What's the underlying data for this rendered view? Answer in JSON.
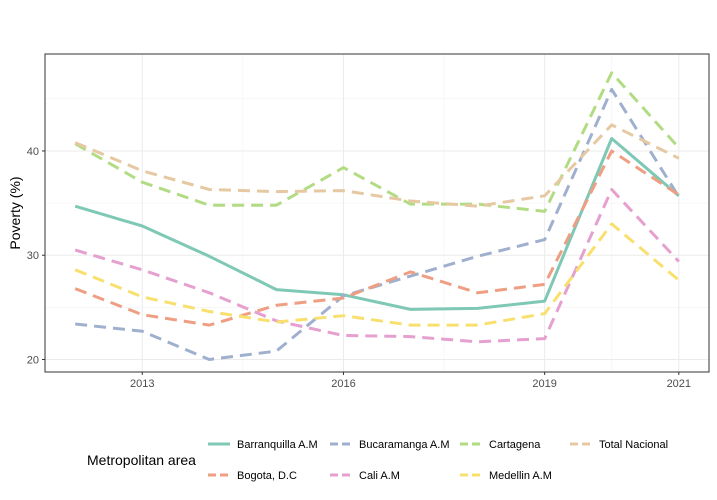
{
  "chart_data": {
    "type": "line",
    "ylabel": "Poverty (%)",
    "xlabel": "",
    "x_ticks": [
      "2013",
      "2016",
      "2019",
      "2021"
    ],
    "y_ticks": [
      "20",
      "30",
      "40"
    ],
    "xlim": [
      2011.55,
      2021.45
    ],
    "ylim": [
      18.8,
      49.3
    ],
    "grid": true,
    "legend": {
      "title": "Metropolitan area",
      "position": "bottom"
    },
    "x": [
      2012,
      2013,
      2014,
      2015,
      2016,
      2017,
      2018,
      2019,
      2020,
      2021
    ],
    "series": [
      {
        "name": "Barranquilla A.M",
        "dash": "solid",
        "color": "#7fc8b5",
        "values": [
          34.7,
          32.8,
          29.9,
          26.7,
          26.2,
          24.8,
          24.9,
          25.6,
          41.2,
          35.7
        ]
      },
      {
        "name": "Bucaramanga A.M",
        "dash": "dashed",
        "color": "#9fb0cf",
        "values": [
          23.4,
          22.7,
          20.0,
          20.8,
          26.1,
          28.0,
          29.9,
          31.5,
          45.9,
          35.6
        ]
      },
      {
        "name": "Cartagena",
        "dash": "dashed",
        "color": "#b2dc84",
        "values": [
          40.7,
          37.0,
          34.8,
          34.8,
          38.4,
          34.9,
          34.9,
          34.2,
          47.5,
          40.3
        ]
      },
      {
        "name": "Total Nacional",
        "dash": "dashed",
        "color": "#e6c9a2",
        "values": [
          40.8,
          38.1,
          36.3,
          36.1,
          36.2,
          35.2,
          34.7,
          35.7,
          42.5,
          39.3
        ]
      },
      {
        "name": "Bogota, D.C",
        "dash": "dashed",
        "color": "#ee9f83",
        "values": [
          26.8,
          24.3,
          23.3,
          25.2,
          25.9,
          28.4,
          26.4,
          27.2,
          40.0,
          35.8
        ]
      },
      {
        "name": "Cali A.M",
        "dash": "dashed",
        "color": "#e5a0cf",
        "values": [
          30.5,
          28.6,
          26.4,
          23.7,
          22.3,
          22.2,
          21.7,
          22.0,
          36.3,
          29.4
        ]
      },
      {
        "name": "Medellin A.M",
        "dash": "dashed",
        "color": "#f8e06e",
        "values": [
          28.6,
          26.0,
          24.6,
          23.6,
          24.2,
          23.3,
          23.3,
          24.4,
          33.0,
          27.6
        ]
      }
    ]
  }
}
